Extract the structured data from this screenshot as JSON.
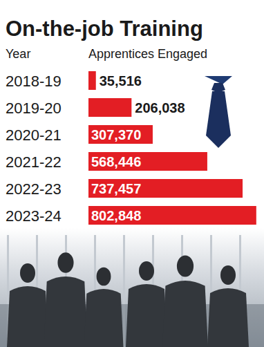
{
  "chart_data": {
    "type": "bar",
    "orientation": "horizontal",
    "title": "On-the-job Training",
    "y_label": "Year",
    "x_label": "Apprentices Engaged",
    "categories": [
      "2018-19",
      "2019-20",
      "2020-21",
      "2021-22",
      "2022-23",
      "2023-24"
    ],
    "values": [
      35516,
      206038,
      307370,
      568446,
      737457,
      802848
    ],
    "value_labels": [
      "35,516",
      "206,038",
      "307,370",
      "568,446",
      "737,457",
      "802,848"
    ],
    "color": "#e31e24",
    "xlim": [
      0,
      820000
    ],
    "data_labels": true,
    "tick_labels": false,
    "grid": false
  }
}
